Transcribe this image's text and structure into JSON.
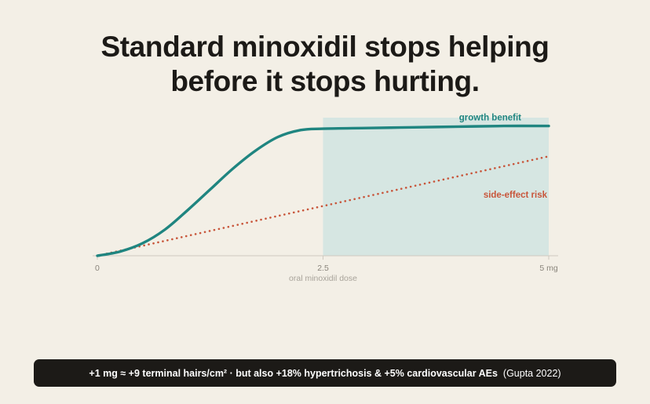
{
  "title": {
    "line1": "Standard minoxidil stops helping",
    "line2": "before it stops hurting."
  },
  "chart_data": {
    "type": "line",
    "title": "Standard minoxidil stops helping before it stops hurting.",
    "xlabel": "oral minoxidil dose",
    "ylabel": "",
    "xlim": [
      0,
      5
    ],
    "ylim": [
      0,
      1
    ],
    "x_ticks": [
      {
        "value": 0,
        "label": "0"
      },
      {
        "value": 2.5,
        "label": "2.5"
      },
      {
        "value": 5,
        "label": "5 mg"
      }
    ],
    "highlight_region": {
      "x_start": 2.5,
      "x_end": 5
    },
    "grid": false,
    "series": [
      {
        "name": "growth benefit",
        "style": "solid",
        "color": "#1f8580",
        "x": [
          0,
          0.25,
          0.5,
          0.75,
          1.0,
          1.25,
          1.5,
          1.75,
          2.0,
          2.25,
          2.5,
          3.0,
          3.5,
          4.0,
          4.5,
          5.0
        ],
        "y": [
          0,
          0.03,
          0.09,
          0.19,
          0.33,
          0.48,
          0.63,
          0.76,
          0.86,
          0.91,
          0.92,
          0.925,
          0.93,
          0.935,
          0.94,
          0.94
        ]
      },
      {
        "name": "side-effect risk",
        "style": "dotted",
        "color": "#c8553a",
        "x": [
          0,
          5
        ],
        "y": [
          0,
          0.72
        ]
      }
    ]
  },
  "footer": {
    "text": "+1 mg ≈ +9 terminal hairs/cm²  ·  but also +18% hypertrichosis & +5% cardiovascular AEs",
    "citation": "(Gupta 2022)"
  },
  "colors": {
    "background": "#f3efe6",
    "benefit": "#1f8580",
    "risk": "#c8553a",
    "region": "#d6e6e2",
    "footer_bg": "#1c1a17"
  }
}
